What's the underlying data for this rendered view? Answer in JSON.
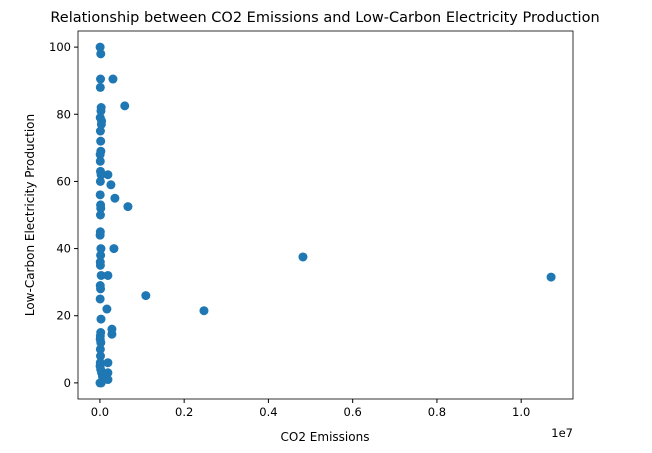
{
  "chart_data": {
    "type": "scatter",
    "title": "Relationship between CO2 Emissions and Low-Carbon Electricity Production",
    "x_label": "CO2 Emissions",
    "y_label": "Low-Carbon Electricity Production",
    "x_offset_label": "1e7",
    "color": "#1f77b4",
    "xlim": [
      -520000,
      11230000
    ],
    "ylim": [
      -4.8,
      104.8
    ],
    "xticks": [
      {
        "value": 0,
        "label": "0.0"
      },
      {
        "value": 2000000,
        "label": "0.2"
      },
      {
        "value": 4000000,
        "label": "0.4"
      },
      {
        "value": 6000000,
        "label": "0.6"
      },
      {
        "value": 8000000,
        "label": "0.8"
      },
      {
        "value": 10000000,
        "label": "1.0"
      }
    ],
    "yticks": [
      0,
      20,
      40,
      60,
      80,
      100
    ],
    "x": [
      5000,
      20000,
      15000,
      10000,
      30000,
      25000,
      8000,
      40000,
      35000,
      12000,
      18000,
      22000,
      6000,
      9000,
      14000,
      28000,
      11000,
      7000,
      16000,
      20000,
      13000,
      10000,
      5000,
      24000,
      17000,
      9000,
      12000,
      30000,
      8000,
      15000,
      6000,
      26000,
      19000,
      10000,
      7000,
      21000,
      11000,
      14000,
      9000,
      5000,
      18000,
      40000,
      60000,
      80000,
      3000,
      30000,
      310000,
      590000,
      665000,
      356000,
      261000,
      190000,
      333000,
      190000,
      1090000,
      2470000,
      4820000,
      10710000,
      285000,
      285000,
      166000,
      190000,
      190000,
      190000
    ],
    "y": [
      100,
      98,
      90.5,
      88,
      82,
      81,
      79,
      78,
      77,
      75,
      72,
      69,
      68,
      66,
      63,
      62,
      60,
      56,
      53,
      52,
      50,
      45,
      44,
      40,
      38,
      36,
      35,
      32,
      29,
      28,
      25,
      19,
      15,
      14,
      13,
      12,
      10,
      8,
      6,
      5,
      4,
      3,
      2,
      1,
      0,
      0,
      90.5,
      82.5,
      52.5,
      55,
      59,
      62,
      40,
      32,
      26,
      21.5,
      37.5,
      31.5,
      16,
      14.5,
      22,
      6,
      3,
      1
    ]
  }
}
